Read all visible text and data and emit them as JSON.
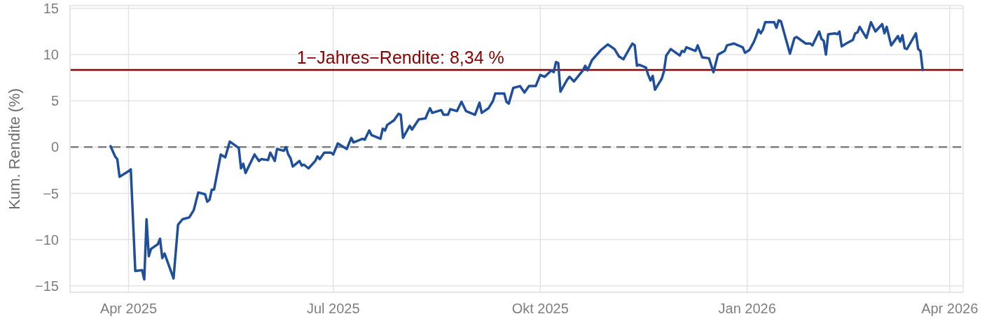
{
  "chart_data": {
    "type": "line",
    "ylabel": "Kum. Rendite (%)",
    "x": [
      "2025-03-24",
      "2025-03-26",
      "2025-03-27",
      "2025-03-28",
      "2025-04-01",
      "2025-04-02",
      "2025-04-04",
      "2025-04-07",
      "2025-04-08",
      "2025-04-09",
      "2025-04-10",
      "2025-04-11",
      "2025-04-14",
      "2025-04-15",
      "2025-04-16",
      "2025-04-17",
      "2025-04-21",
      "2025-04-23",
      "2025-04-25",
      "2025-04-28",
      "2025-04-30",
      "2025-05-02",
      "2025-05-05",
      "2025-05-06",
      "2025-05-07",
      "2025-05-08",
      "2025-05-09",
      "2025-05-12",
      "2025-05-14",
      "2025-05-16",
      "2025-05-20",
      "2025-05-21",
      "2025-05-22",
      "2025-05-23",
      "2025-05-27",
      "2025-05-29",
      "2025-05-30",
      "2025-06-02",
      "2025-06-03",
      "2025-06-05",
      "2025-06-06",
      "2025-06-09",
      "2025-06-10",
      "2025-06-11",
      "2025-06-12",
      "2025-06-13",
      "2025-06-16",
      "2025-06-17",
      "2025-06-18",
      "2025-06-20",
      "2025-06-23",
      "2025-06-24",
      "2025-06-25",
      "2025-06-27",
      "2025-06-30",
      "2025-07-01",
      "2025-07-03",
      "2025-07-07",
      "2025-07-09",
      "2025-07-10",
      "2025-07-14",
      "2025-07-15",
      "2025-07-17",
      "2025-07-18",
      "2025-07-22",
      "2025-07-23",
      "2025-07-24",
      "2025-07-25",
      "2025-07-28",
      "2025-07-30",
      "2025-07-31",
      "2025-08-01",
      "2025-08-04",
      "2025-08-05",
      "2025-08-08",
      "2025-08-11",
      "2025-08-12",
      "2025-08-13",
      "2025-08-14",
      "2025-08-18",
      "2025-08-19",
      "2025-08-21",
      "2025-08-22",
      "2025-08-25",
      "2025-08-27",
      "2025-08-29",
      "2025-09-02",
      "2025-09-04",
      "2025-09-05",
      "2025-09-08",
      "2025-09-10",
      "2025-09-11",
      "2025-09-15",
      "2025-09-16",
      "2025-09-17",
      "2025-09-19",
      "2025-09-22",
      "2025-09-24",
      "2025-09-26",
      "2025-09-29",
      "2025-10-01",
      "2025-10-03",
      "2025-10-06",
      "2025-10-07",
      "2025-10-08",
      "2025-10-09",
      "2025-10-10",
      "2025-10-13",
      "2025-10-14",
      "2025-10-16",
      "2025-10-20",
      "2025-10-21",
      "2025-10-22",
      "2025-10-24",
      "2025-10-28",
      "2025-10-31",
      "2025-11-03",
      "2025-11-05",
      "2025-11-07",
      "2025-11-10",
      "2025-11-11",
      "2025-11-12",
      "2025-11-13",
      "2025-11-14",
      "2025-11-17",
      "2025-11-18",
      "2025-11-19",
      "2025-11-20",
      "2025-11-21",
      "2025-11-24",
      "2025-11-25",
      "2025-11-26",
      "2025-11-28",
      "2025-12-02",
      "2025-12-03",
      "2025-12-04",
      "2025-12-05",
      "2025-12-09",
      "2025-12-10",
      "2025-12-12",
      "2025-12-15",
      "2025-12-17",
      "2025-12-19",
      "2025-12-22",
      "2025-12-23",
      "2025-12-26",
      "2025-12-30",
      "2025-12-31",
      "2026-01-02",
      "2026-01-04",
      "2026-01-05",
      "2026-01-06",
      "2026-01-07",
      "2026-01-08",
      "2026-01-09",
      "2026-01-13",
      "2026-01-14",
      "2026-01-15",
      "2026-01-16",
      "2026-01-20",
      "2026-01-22",
      "2026-01-23",
      "2026-01-27",
      "2026-01-29",
      "2026-01-30",
      "2026-02-02",
      "2026-02-03",
      "2026-02-04",
      "2026-02-05",
      "2026-02-06",
      "2026-02-09",
      "2026-02-10",
      "2026-02-11",
      "2026-02-12",
      "2026-02-14",
      "2026-02-17",
      "2026-02-18",
      "2026-02-19",
      "2026-02-20",
      "2026-02-23",
      "2026-02-25",
      "2026-02-27",
      "2026-03-02",
      "2026-03-03",
      "2026-03-04",
      "2026-03-06",
      "2026-03-09",
      "2026-03-10",
      "2026-03-11",
      "2026-03-12",
      "2026-03-13",
      "2026-03-17",
      "2026-03-18",
      "2026-03-19",
      "2026-03-20"
    ],
    "series": [
      {
        "color": "#1f4e9a",
        "values": [
          0.1,
          -1.0,
          -1.3,
          -3.2,
          -2.6,
          -2.4,
          -13.4,
          -13.3,
          -14.3,
          -7.8,
          -11.8,
          -11.0,
          -10.5,
          -9.9,
          -12.0,
          -11.5,
          -14.2,
          -8.4,
          -7.8,
          -7.6,
          -6.8,
          -4.9,
          -5.1,
          -5.9,
          -5.7,
          -4.6,
          -4.6,
          -0.8,
          -1.1,
          0.6,
          -0.1,
          -2.3,
          -1.8,
          -2.8,
          -0.8,
          -1.5,
          -1.3,
          -1.4,
          -0.6,
          -1.5,
          -0.2,
          -0.4,
          0.0,
          -0.8,
          -1.2,
          -2.1,
          -1.5,
          -2.0,
          -1.9,
          -2.3,
          -1.5,
          -1.0,
          -1.3,
          -0.6,
          -0.6,
          -0.8,
          0.4,
          -0.2,
          1.0,
          0.5,
          0.9,
          0.8,
          1.8,
          1.3,
          0.9,
          2.0,
          1.8,
          2.4,
          2.9,
          3.6,
          3.5,
          1.0,
          2.3,
          1.9,
          3.0,
          3.1,
          3.7,
          4.2,
          3.7,
          4.0,
          3.5,
          3.5,
          4.1,
          3.9,
          4.9,
          3.9,
          3.5,
          4.8,
          3.7,
          4.2,
          5.0,
          5.8,
          5.8,
          4.9,
          4.7,
          6.4,
          6.6,
          5.9,
          6.6,
          6.6,
          7.8,
          7.6,
          8.3,
          8.1,
          9.2,
          9.1,
          6.0,
          7.3,
          7.6,
          7.1,
          8.3,
          8.8,
          8.3,
          9.4,
          10.5,
          11.1,
          10.6,
          9.8,
          9.5,
          10.8,
          11.2,
          11.0,
          8.8,
          8.9,
          8.6,
          7.8,
          7.2,
          7.7,
          6.2,
          7.4,
          8.2,
          9.9,
          10.6,
          9.9,
          10.4,
          10.3,
          10.8,
          10.4,
          11.0,
          9.7,
          9.6,
          8.1,
          10.0,
          10.4,
          11.0,
          11.2,
          10.8,
          10.2,
          10.5,
          11.4,
          12.0,
          12.7,
          12.3,
          12.7,
          13.5,
          13.5,
          12.9,
          13.7,
          13.6,
          10.1,
          11.8,
          11.9,
          11.2,
          11.2,
          11.0,
          12.5,
          11.7,
          11.5,
          10.0,
          12.2,
          12.3,
          12.2,
          12.5,
          10.9,
          11.2,
          11.6,
          12.3,
          12.4,
          13.0,
          11.8,
          13.5,
          12.5,
          13.3,
          12.3,
          13.0,
          11.0,
          12.0,
          11.4,
          12.1,
          10.7,
          10.6,
          12.3,
          10.6,
          10.4,
          8.34
        ]
      }
    ],
    "xlim": [
      "2025-03-06",
      "2026-04-07"
    ],
    "xticks": [
      {
        "value": "2025-04-01",
        "label": "Apr 2025"
      },
      {
        "value": "2025-07-01",
        "label": "Jul 2025"
      },
      {
        "value": "2025-10-01",
        "label": "Okt 2025"
      },
      {
        "value": "2026-01-01",
        "label": "Jan 2026"
      },
      {
        "value": "2026-04-01",
        "label": "Apr 2026"
      }
    ],
    "ylim": [
      -15.7,
      15.3
    ],
    "yticks": [
      {
        "value": -15,
        "label": "−15"
      },
      {
        "value": -10,
        "label": "−10"
      },
      {
        "value": -5,
        "label": "−5"
      },
      0,
      5,
      10,
      15
    ],
    "grid": true,
    "ref_lines": [
      {
        "axis": "y",
        "value": 0,
        "color": "#7f7f7f",
        "line_style": "dashed"
      },
      {
        "axis": "y",
        "value": 8.34,
        "color": "#8b0000",
        "label": "1−Jahres−Rendite: 8,34 %"
      }
    ]
  }
}
